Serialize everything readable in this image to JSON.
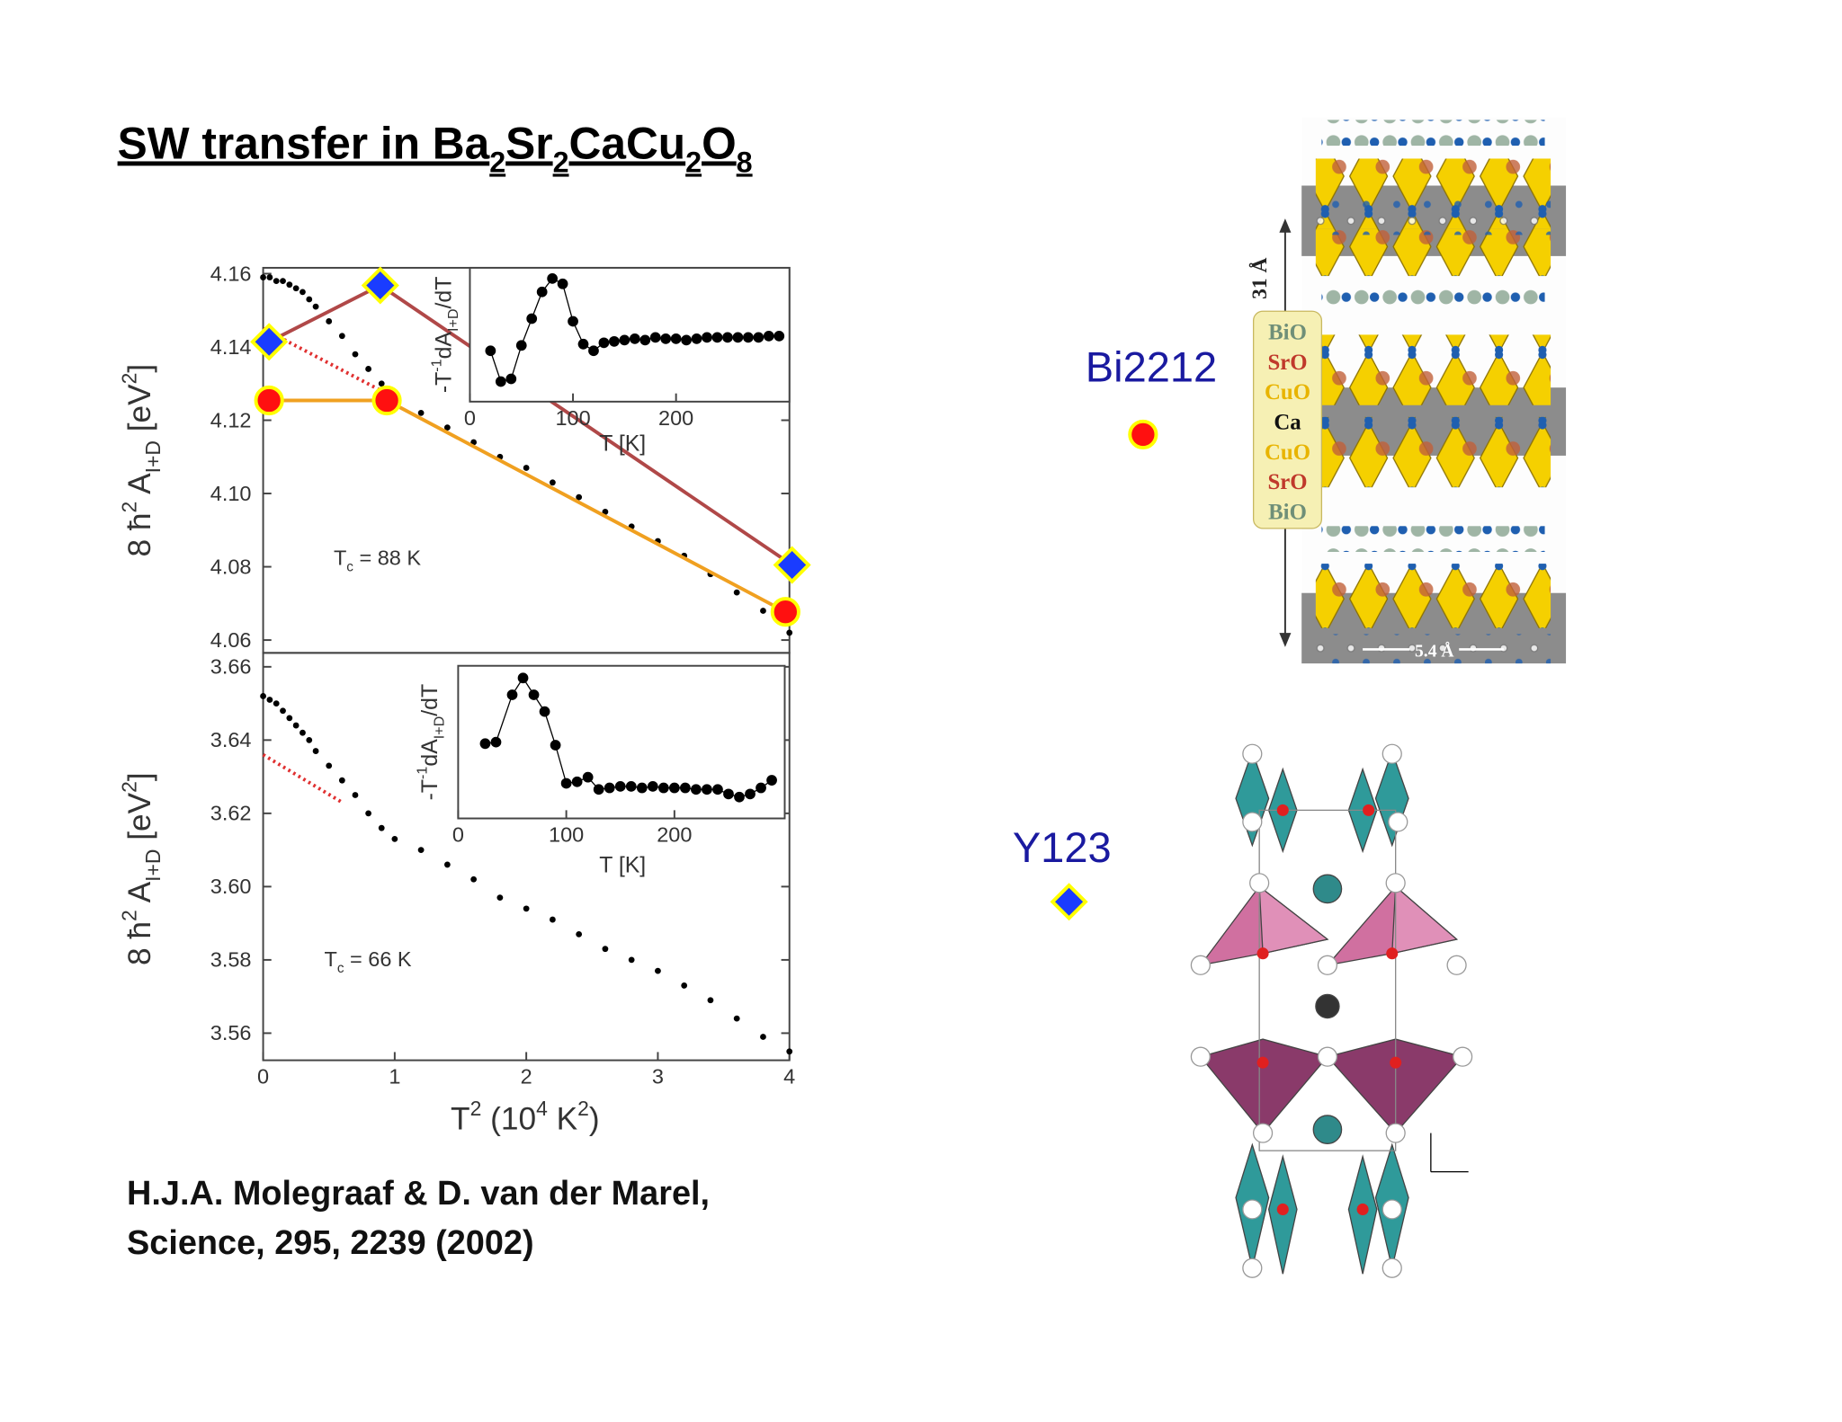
{
  "slide": {
    "title": [
      {
        "text": "SW transfer in Ba"
      },
      {
        "text": "2",
        "sub": true
      },
      {
        "text": "Sr"
      },
      {
        "text": "2",
        "sub": true
      },
      {
        "text": "CaCu"
      },
      {
        "text": "2",
        "sub": true
      },
      {
        "text": "O"
      },
      {
        "text": "8",
        "sub": true
      }
    ],
    "citation": [
      "H.J.A. Molegraaf & D. van der Marel,",
      "Science, 295, 2239 (2002)"
    ],
    "compounds": [
      {
        "label": "Bi2212",
        "marker": "circle",
        "color": "#ff1010"
      },
      {
        "label": "Y123",
        "marker": "diamond",
        "color": "#1a3cff"
      }
    ],
    "structure": {
      "layers": [
        {
          "text": "BiO",
          "color": "#6f8f78"
        },
        {
          "text": "SrO",
          "color": "#c0392b"
        },
        {
          "text": "CuO",
          "color": "#e8b400"
        },
        {
          "text": "Ca",
          "color": "#111111"
        },
        {
          "text": "CuO",
          "color": "#e8b400"
        },
        {
          "text": "SrO",
          "color": "#c0392b"
        },
        {
          "text": "BiO",
          "color": "#6f8f78"
        }
      ],
      "c_axis": "31 Å",
      "a_axis": "5.4 Å"
    }
  },
  "chart_data": [
    {
      "type": "scatter",
      "ylabel": [
        {
          "text": "8 ħ"
        },
        {
          "text": "2",
          "sup": true
        },
        {
          "text": " A"
        },
        {
          "text": "I+D",
          "sub": true
        },
        {
          "text": " [eV"
        },
        {
          "text": "2",
          "sup": true
        },
        {
          "text": "]"
        }
      ],
      "annotation": [
        {
          "text": "T"
        },
        {
          "text": "c",
          "sub": true
        },
        {
          "text": " = 88 K"
        }
      ],
      "xlim": [
        0,
        4
      ],
      "ylim": [
        4.0565,
        4.1616
      ],
      "yticks": [
        4.06,
        4.08,
        {
          "value": 4.1,
          "label": "4.10"
        },
        4.12,
        4.14,
        4.16
      ],
      "series": [
        {
          "style": "dots",
          "color": "#000000",
          "x": [
            0,
            0.05,
            0.1,
            0.15,
            0.2,
            0.25,
            0.3,
            0.35,
            0.4,
            0.5,
            0.6,
            0.7,
            0.8,
            0.9,
            1.0,
            1.2,
            1.4,
            1.6,
            1.8,
            2.0,
            2.2,
            2.4,
            2.6,
            2.8,
            3.0,
            3.2,
            3.4,
            3.6,
            3.8,
            4.0
          ],
          "values": [
            4.159,
            4.159,
            4.158,
            4.158,
            4.157,
            4.156,
            4.155,
            4.153,
            4.151,
            4.147,
            4.143,
            4.138,
            4.134,
            4.13,
            4.126,
            4.122,
            4.118,
            4.114,
            4.11,
            4.107,
            4.103,
            4.099,
            4.095,
            4.091,
            4.087,
            4.083,
            4.078,
            4.073,
            4.068,
            4.062
          ]
        },
        {
          "style": "dotted",
          "color": "#e03030",
          "x": [
            0,
            0.9
          ],
          "values": [
            4.145,
            4.128
          ]
        },
        {
          "style": "line-markers",
          "marker": "diamond",
          "color": "#b04848",
          "marker_color": "#1a3cff",
          "edge_color": "#ffff00",
          "x": [
            0.045,
            0.89,
            4.02
          ],
          "values": [
            4.1414,
            4.1568,
            4.0805
          ]
        },
        {
          "style": "line-markers",
          "marker": "circle",
          "color": "#f0a020",
          "marker_color": "#ff1010",
          "edge_color": "#ffff00",
          "x": [
            0.045,
            0.94,
            3.97
          ],
          "values": [
            4.1254,
            4.1254,
            4.0677
          ]
        }
      ]
    },
    {
      "type": "line",
      "ylabel": [
        {
          "text": "-T"
        },
        {
          "text": "-1",
          "sup": true
        },
        {
          "text": "dA"
        },
        {
          "text": "I+D",
          "sub": true
        },
        {
          "text": "/dT"
        }
      ],
      "xlabel": "T [K]",
      "xlim": [
        0,
        310
      ],
      "ylim": [
        0,
        1
      ],
      "xticks": [
        0,
        100,
        200
      ],
      "series": [
        {
          "color": "#000000",
          "x": [
            20,
            30,
            40,
            50,
            60,
            70,
            80,
            90,
            100,
            110,
            120,
            130,
            140,
            150,
            160,
            170,
            180,
            190,
            200,
            210,
            220,
            230,
            240,
            250,
            260,
            270,
            280,
            290,
            300
          ],
          "values": [
            0.38,
            0.15,
            0.17,
            0.42,
            0.62,
            0.82,
            0.92,
            0.88,
            0.6,
            0.43,
            0.38,
            0.44,
            0.45,
            0.46,
            0.47,
            0.46,
            0.48,
            0.47,
            0.47,
            0.46,
            0.47,
            0.48,
            0.48,
            0.48,
            0.48,
            0.48,
            0.48,
            0.49,
            0.49
          ]
        }
      ]
    },
    {
      "type": "scatter",
      "ylabel": [
        {
          "text": "8 ħ"
        },
        {
          "text": "2",
          "sup": true
        },
        {
          "text": " A"
        },
        {
          "text": "I+D",
          "sub": true
        },
        {
          "text": " [eV"
        },
        {
          "text": "2",
          "sup": true
        },
        {
          "text": "]"
        }
      ],
      "xlabel": [
        {
          "text": "T"
        },
        {
          "text": "2",
          "sup": true
        },
        {
          "text": "  (10"
        },
        {
          "text": "4",
          "sup": true
        },
        {
          "text": " K"
        },
        {
          "text": "2",
          "sup": true
        },
        {
          "text": ")"
        }
      ],
      "annotation": [
        {
          "text": "T"
        },
        {
          "text": "c",
          "sub": true
        },
        {
          "text": " = 66 K"
        }
      ],
      "xlim": [
        0,
        4
      ],
      "ylim": [
        3.5526,
        3.6638
      ],
      "xticks": [
        0,
        1,
        2,
        3,
        4
      ],
      "yticks": [
        3.56,
        3.58,
        {
          "value": 3.6,
          "label": "3.60"
        },
        3.62,
        3.64,
        3.66
      ],
      "series": [
        {
          "style": "dots",
          "color": "#000000",
          "x": [
            0,
            0.05,
            0.1,
            0.15,
            0.2,
            0.25,
            0.3,
            0.35,
            0.4,
            0.5,
            0.6,
            0.7,
            0.8,
            0.9,
            1.0,
            1.2,
            1.4,
            1.6,
            1.8,
            2.0,
            2.2,
            2.4,
            2.6,
            2.8,
            3.0,
            3.2,
            3.4,
            3.6,
            3.8,
            4.0
          ],
          "values": [
            3.652,
            3.651,
            3.65,
            3.648,
            3.646,
            3.644,
            3.642,
            3.64,
            3.637,
            3.633,
            3.629,
            3.625,
            3.62,
            3.616,
            3.613,
            3.61,
            3.606,
            3.602,
            3.597,
            3.594,
            3.591,
            3.587,
            3.583,
            3.58,
            3.577,
            3.573,
            3.569,
            3.564,
            3.559,
            3.555
          ]
        },
        {
          "style": "dotted",
          "color": "#e03030",
          "x": [
            0,
            0.6
          ],
          "values": [
            3.636,
            3.623
          ]
        }
      ]
    },
    {
      "type": "line",
      "ylabel": [
        {
          "text": "-T"
        },
        {
          "text": "-1",
          "sup": true
        },
        {
          "text": "dA"
        },
        {
          "text": "I+D",
          "sub": true
        },
        {
          "text": "/dT"
        }
      ],
      "xlabel": "T [K]",
      "xlim": [
        0,
        302
      ],
      "ylim": [
        0,
        1
      ],
      "xticks": [
        0,
        100,
        200
      ],
      "series": [
        {
          "color": "#000000",
          "x": [
            25,
            35,
            50,
            60,
            70,
            80,
            90,
            100,
            110,
            120,
            130,
            140,
            150,
            160,
            170,
            180,
            190,
            200,
            210,
            220,
            230,
            240,
            250,
            260,
            270,
            280,
            290
          ],
          "values": [
            0.49,
            0.5,
            0.81,
            0.92,
            0.81,
            0.7,
            0.48,
            0.23,
            0.24,
            0.27,
            0.19,
            0.2,
            0.21,
            0.21,
            0.2,
            0.21,
            0.2,
            0.2,
            0.2,
            0.19,
            0.19,
            0.19,
            0.16,
            0.14,
            0.16,
            0.2,
            0.25
          ]
        }
      ]
    }
  ]
}
